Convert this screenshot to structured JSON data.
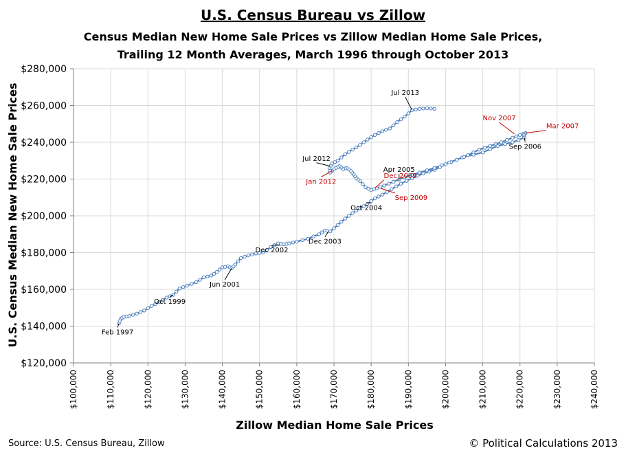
{
  "header": {
    "title": "U.S. Census Bureau vs Zillow",
    "subtitle_line1": "Census Median New Home Sale Prices vs Zillow Median Home Sale Prices,",
    "subtitle_line2": "Trailing 12 Month Averages, March 1996 through October 2013"
  },
  "footer": {
    "source": "Source: U.S. Census Bureau, Zillow",
    "credit": "© Political Calculations 2013"
  },
  "colors": {
    "series": "#4f81bd",
    "marker_fill": "#ffffff",
    "grid": "#d9d9d9",
    "annotation_black": "#000000",
    "annotation_red": "#c00000"
  },
  "chart_data": {
    "type": "scatter",
    "title": "U.S. Census Bureau vs Zillow",
    "xlabel": "Zillow Median Home Sale Prices",
    "ylabel": "U.S. Census Median New Home Sale Prices",
    "xlim": [
      100000,
      240000
    ],
    "ylim": [
      120000,
      280000
    ],
    "x_ticks": [
      "$100,000",
      "$110,000",
      "$120,000",
      "$130,000",
      "$140,000",
      "$150,000",
      "$160,000",
      "$170,000",
      "$180,000",
      "$190,000",
      "$200,000",
      "$210,000",
      "$220,000",
      "$230,000",
      "$240,000"
    ],
    "y_ticks": [
      "$120,000",
      "$140,000",
      "$160,000",
      "$180,000",
      "$200,000",
      "$220,000",
      "$240,000",
      "$260,000",
      "$280,000"
    ],
    "grid": true,
    "legend": "none",
    "series": [
      {
        "points": [
          [
            112200,
            141500
          ],
          [
            112700,
            144000
          ],
          [
            113500,
            145000
          ],
          [
            115000,
            145500
          ],
          [
            117000,
            146800
          ],
          [
            119000,
            148500
          ],
          [
            121000,
            151000
          ],
          [
            123000,
            153000
          ],
          [
            125000,
            155500
          ],
          [
            126800,
            157000
          ],
          [
            128500,
            160500
          ],
          [
            130500,
            162000
          ],
          [
            133000,
            164000
          ],
          [
            135000,
            166500
          ],
          [
            137000,
            167500
          ],
          [
            138500,
            169500
          ],
          [
            140000,
            172000
          ],
          [
            141500,
            172500
          ],
          [
            142500,
            171500
          ],
          [
            143500,
            173500
          ],
          [
            145000,
            177000
          ],
          [
            147000,
            178500
          ],
          [
            149000,
            179500
          ],
          [
            151000,
            180000
          ],
          [
            153000,
            183000
          ],
          [
            155000,
            185000
          ],
          [
            156500,
            184500
          ],
          [
            158000,
            185000
          ],
          [
            160000,
            186000
          ],
          [
            163000,
            187500
          ],
          [
            166000,
            190000
          ],
          [
            167500,
            192000
          ],
          [
            169000,
            191500
          ],
          [
            171000,
            195000
          ],
          [
            173000,
            198500
          ],
          [
            175000,
            201500
          ],
          [
            177000,
            204000
          ],
          [
            179000,
            206500
          ],
          [
            181000,
            209500
          ],
          [
            183000,
            211500
          ],
          [
            185500,
            214500
          ],
          [
            188000,
            217500
          ],
          [
            191000,
            220500
          ],
          [
            194000,
            223000
          ],
          [
            197000,
            225000
          ],
          [
            200000,
            228000
          ],
          [
            203000,
            230500
          ],
          [
            206000,
            233000
          ],
          [
            209000,
            236000
          ],
          [
            212000,
            238000
          ],
          [
            215000,
            240000
          ],
          [
            218000,
            242500
          ],
          [
            220000,
            244000
          ],
          [
            221500,
            245000
          ],
          [
            221000,
            244000
          ],
          [
            221200,
            242500
          ],
          [
            218000,
            240000
          ],
          [
            214000,
            238000
          ],
          [
            210000,
            234500
          ],
          [
            205000,
            232000
          ],
          [
            201000,
            229000
          ],
          [
            197000,
            226000
          ],
          [
            193000,
            223500
          ],
          [
            189000,
            221000
          ],
          [
            186000,
            218500
          ],
          [
            183500,
            216500
          ],
          [
            181500,
            215000
          ],
          [
            180000,
            214000
          ],
          [
            178500,
            215500
          ],
          [
            177000,
            219000
          ],
          [
            176000,
            220500
          ],
          [
            175300,
            222500
          ],
          [
            174500,
            224500
          ],
          [
            173500,
            226000
          ],
          [
            172500,
            225500
          ],
          [
            171500,
            227000
          ],
          [
            170500,
            226000
          ],
          [
            169500,
            224500
          ],
          [
            169000,
            223500
          ],
          [
            168800,
            226000
          ],
          [
            169500,
            228500
          ],
          [
            171000,
            230000
          ],
          [
            173000,
            233500
          ],
          [
            175000,
            236000
          ],
          [
            177000,
            238500
          ],
          [
            179000,
            241500
          ],
          [
            181000,
            244000
          ],
          [
            183000,
            246000
          ],
          [
            185000,
            247500
          ],
          [
            187000,
            251000
          ],
          [
            189000,
            254000
          ],
          [
            191000,
            257500
          ],
          [
            193000,
            258200
          ],
          [
            195000,
            258500
          ],
          [
            197000,
            258200
          ]
        ]
      }
    ],
    "annotations": [
      {
        "text": "Feb 1997",
        "x": 112200,
        "y": 141500,
        "color": "black"
      },
      {
        "text": "Oct 1999",
        "x": 126800,
        "y": 157000,
        "color": "black"
      },
      {
        "text": "Jun 2001",
        "x": 142500,
        "y": 171500,
        "color": "black"
      },
      {
        "text": "Dec 2002",
        "x": 155500,
        "y": 184000,
        "color": "black"
      },
      {
        "text": "Dec 2003",
        "x": 168500,
        "y": 191500,
        "color": "black"
      },
      {
        "text": "Oct 2004",
        "x": 180000,
        "y": 207000,
        "color": "black"
      },
      {
        "text": "Apr 2005",
        "x": 187500,
        "y": 219000,
        "color": "black"
      },
      {
        "text": "Sep 2006",
        "x": 221200,
        "y": 242500,
        "color": "black"
      },
      {
        "text": "Mar 2007",
        "x": 221500,
        "y": 245000,
        "color": "red"
      },
      {
        "text": "Nov 2007",
        "x": 218500,
        "y": 244500,
        "color": "red"
      },
      {
        "text": "Dec 2009",
        "x": 181000,
        "y": 215000,
        "color": "red"
      },
      {
        "text": "Sep 2009",
        "x": 182500,
        "y": 215000,
        "color": "red"
      },
      {
        "text": "Jan 2012",
        "x": 169500,
        "y": 224500,
        "color": "red"
      },
      {
        "text": "Jul 2012",
        "x": 169000,
        "y": 227000,
        "color": "black"
      },
      {
        "text": "Jul 2013",
        "x": 191000,
        "y": 257500,
        "color": "black"
      }
    ]
  }
}
